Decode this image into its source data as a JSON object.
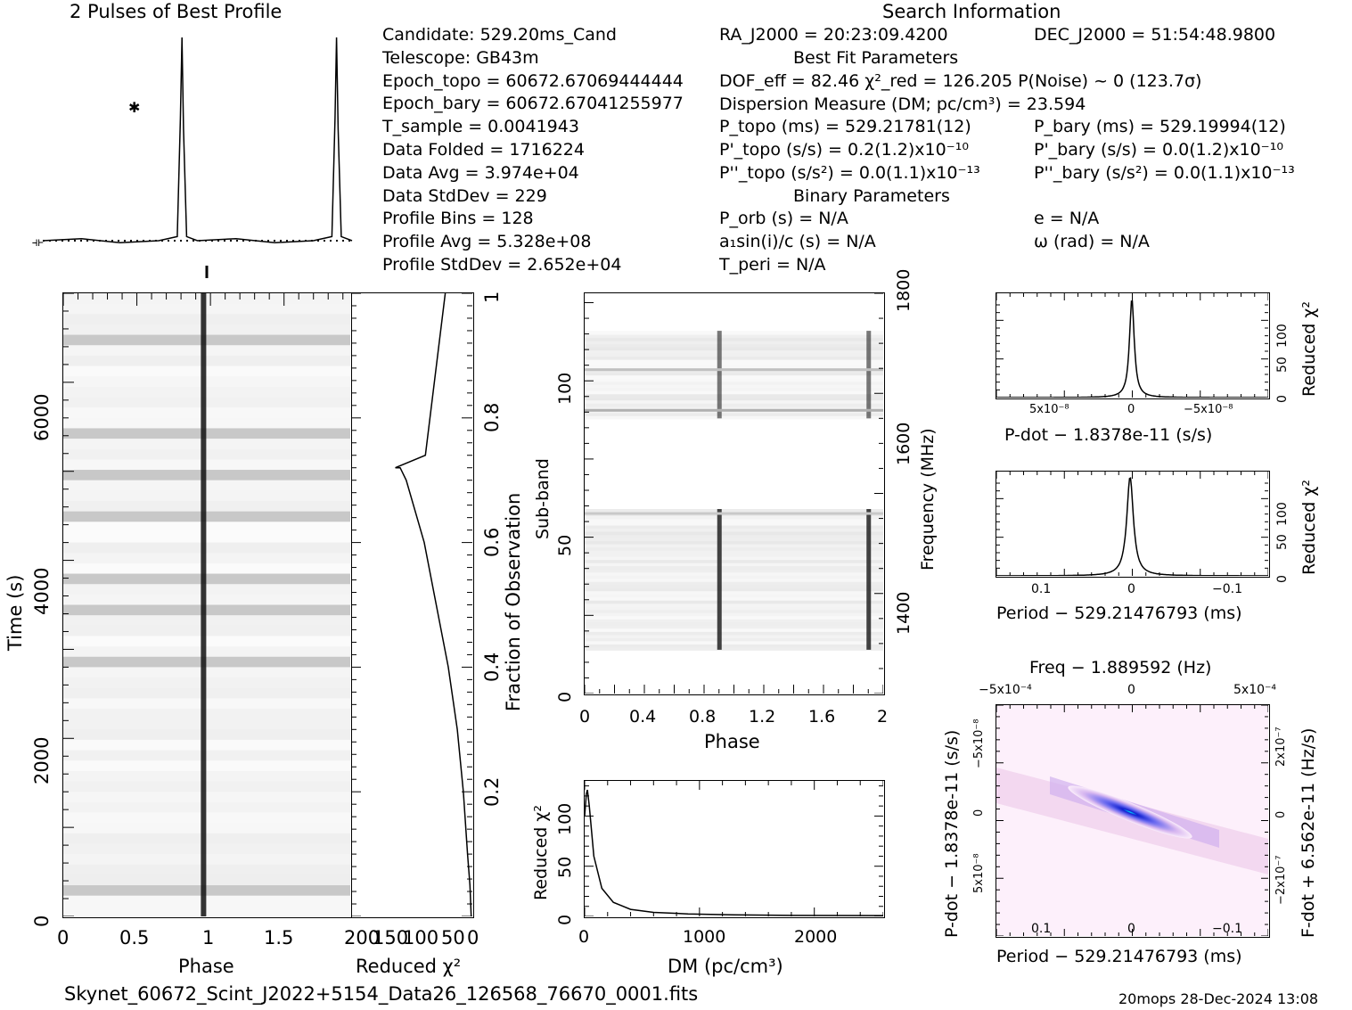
{
  "header": {
    "profile_title": "2 Pulses of Best Profile",
    "search_title": "Search Information",
    "best_fit_title": "Best Fit Parameters",
    "binary_title": "Binary Parameters"
  },
  "info_col1": [
    "Candidate:  529.20ms_Cand",
    "Telescope:  GB43m",
    "Epoch_topo = 60672.67069444444",
    "Epoch_bary = 60672.67041255977",
    "T_sample     =  0.0041943",
    "Data Folded    =  1716224",
    "Data Avg       =  3.974e+04",
    "Data StdDev    =  229",
    "Profile Bins   =  128",
    "Profile Avg    =  5.328e+08",
    "Profile StdDev =  2.652e+04"
  ],
  "info_col2": [
    "RA_J2000 = 20:23:09.4200",
    "DOF_eff = 82.46  χ²_red = 126.205  P(Noise) ~ 0   (123.7σ)",
    "Dispersion Measure (DM; pc/cm³) = 23.594",
    "P_topo (ms) =  529.21781(12)",
    "P'_topo (s/s) =  0.2(1.2)x10⁻¹⁰",
    "P''_topo (s/s²) = 0.0(1.1)x10⁻¹³",
    "P_orb (s) = N/A",
    "a₁sin(i)/c (s) = N/A",
    "T_peri = N/A"
  ],
  "info_col3": [
    "DEC_J2000 = 51:54:48.9800",
    "P_bary (ms) =  529.19994(12)",
    "P'_bary (s/s) = 0.0(1.2)x10⁻¹⁰",
    "P''_bary (s/s²) = 0.0(1.1)x10⁻¹³",
    "e = N/A",
    "ω (rad) = N/A"
  ],
  "footer": {
    "filename": "Skynet_60672_Scint_J2022+5154_Data26_126568_76670_0001.fits",
    "stamp": "20mops 28-Dec-2024 13:08"
  },
  "chart_data": [
    {
      "type": "line",
      "id": "profile",
      "title": "2 Pulses of Best Profile",
      "x": [
        0,
        0.25,
        0.5,
        0.75,
        0.87,
        0.89,
        0.9,
        0.91,
        0.93,
        1.0,
        1.25,
        1.5,
        1.75,
        1.87,
        1.89,
        1.9,
        1.91,
        1.93,
        2.0
      ],
      "y": [
        0.0,
        0.01,
        -0.01,
        0.0,
        0.02,
        0.6,
        1.0,
        0.55,
        0.02,
        0.0,
        0.01,
        -0.01,
        0.0,
        0.02,
        0.6,
        1.0,
        0.55,
        0.02,
        0.0
      ]
    },
    {
      "type": "heatmap",
      "id": "time-phase",
      "xlabel": "Phase",
      "ylabel": "Time (s)",
      "x_ticks": [
        "0",
        "0.5",
        "1",
        "1.5"
      ],
      "y_ticks": [
        "0",
        "2000",
        "4000",
        "6000"
      ],
      "xlim": [
        0,
        2
      ],
      "ylim": [
        0,
        7000
      ],
      "pulse_phases": [
        0.9,
        1.9
      ]
    },
    {
      "type": "line",
      "id": "time-chi2",
      "xlabel": "Reduced χ²",
      "ylabel": "Fraction of Observation",
      "x_ticks": [
        "200",
        "150",
        "100",
        "50",
        "0"
      ],
      "y_ticks": [
        "0.2",
        "0.4",
        "0.6",
        "0.8",
        "1"
      ],
      "xlim": [
        200,
        0
      ],
      "ylim": [
        0,
        1
      ],
      "x": [
        2,
        4,
        8,
        15,
        25,
        40,
        60,
        80,
        95,
        110,
        120,
        128,
        78,
        45
      ],
      "y": [
        0.0,
        0.05,
        0.1,
        0.2,
        0.3,
        0.4,
        0.5,
        0.6,
        0.65,
        0.7,
        0.72,
        0.72,
        0.74,
        1.0
      ]
    },
    {
      "type": "heatmap",
      "id": "subband-phase",
      "xlabel": "Phase",
      "ylabel": "Sub-band",
      "y2label": "Frequency (MHz)",
      "x_ticks": [
        "0",
        "0.4",
        "0.8",
        "1.2",
        "1.6",
        "2"
      ],
      "y_ticks": [
        "0",
        "50",
        "100"
      ],
      "y2_ticks": [
        "1400",
        "1600",
        "1800"
      ],
      "xlim": [
        0,
        2
      ],
      "ylim": [
        0,
        128
      ],
      "bands": [
        [
          14,
          59
        ],
        [
          88,
          116
        ]
      ],
      "pulse_phases": [
        0.9,
        1.9
      ]
    },
    {
      "type": "line",
      "id": "dm-chi2",
      "xlabel": "DM (pc/cm³)",
      "ylabel": "Reduced χ²",
      "x_ticks": [
        "0",
        "1000",
        "2000"
      ],
      "y_ticks": [
        "0",
        "50",
        "100"
      ],
      "xlim": [
        0,
        2600
      ],
      "ylim": [
        0,
        135
      ],
      "x": [
        0,
        15,
        24,
        40,
        80,
        150,
        250,
        400,
        600,
        900,
        1300,
        1800,
        2600
      ],
      "y": [
        100,
        122,
        126,
        110,
        60,
        28,
        14,
        7,
        4,
        2.5,
        1.5,
        1,
        0.8
      ]
    },
    {
      "type": "line",
      "id": "pdot-chi2",
      "xlabel": "P-dot − 1.8378e-11 (s/s)",
      "ylabel": "Reduced χ²",
      "x_ticks": [
        "5x10⁻⁸",
        "0",
        "−5x10⁻⁸"
      ],
      "y_ticks": [
        "0",
        "50",
        "100"
      ],
      "ylim": [
        0,
        135
      ]
    },
    {
      "type": "line",
      "id": "period-chi2",
      "xlabel": "Period − 529.21476793 (ms)",
      "ylabel": "Reduced χ²",
      "x_ticks": [
        "0.1",
        "0",
        "−0.1"
      ],
      "y_ticks": [
        "0",
        "50",
        "100"
      ],
      "ylim": [
        0,
        135
      ]
    },
    {
      "type": "heatmap",
      "id": "period-pdot",
      "title": "Freq − 1.889592 (Hz)",
      "xlabel": "Period − 529.21476793 (ms)",
      "ylabel": "P-dot − 1.8378e-11 (s/s)",
      "y2label": "F-dot + 6.562e-11 (Hz/s)",
      "x_ticks": [
        "0.1",
        "0",
        "−0.1"
      ],
      "x2_ticks": [
        "−5x10⁻⁴",
        "0",
        "5x10⁻⁴"
      ],
      "y_ticks": [
        "−5x10⁻⁸",
        "0",
        "5x10⁻⁸"
      ],
      "y2_ticks": [
        "2x10⁻⁷",
        "0",
        "−2x10⁻⁷"
      ]
    }
  ]
}
